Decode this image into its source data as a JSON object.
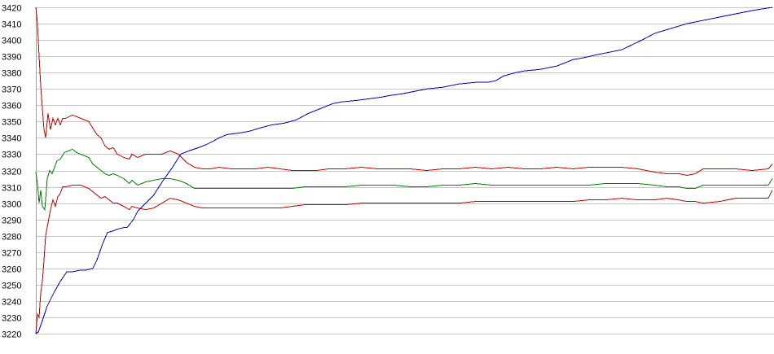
{
  "chart_data": {
    "type": "line",
    "title": "",
    "xlabel": "",
    "ylabel": "",
    "ylim": [
      3220,
      3420
    ],
    "xlim": [
      0,
      905
    ],
    "y_ticks": [
      3220,
      3230,
      3240,
      3250,
      3260,
      3270,
      3280,
      3290,
      3300,
      3310,
      3320,
      3330,
      3340,
      3350,
      3360,
      3370,
      3380,
      3390,
      3400,
      3410,
      3420
    ],
    "y_tick_labels": [
      "3220",
      "3230",
      "3240",
      "3250",
      "3260",
      "3270",
      "3280",
      "3290",
      "3300",
      "3310",
      "3320",
      "3330",
      "3340",
      "3350",
      "3360",
      "3370",
      "3380",
      "3390",
      "3400",
      "3410",
      "3420"
    ],
    "grid": true,
    "legend": "none",
    "series": [
      {
        "color": "#0000c8",
        "x": [
          0,
          3,
          8,
          14,
          22,
          30,
          38,
          46,
          55,
          62,
          70,
          75,
          82,
          88,
          95,
          100,
          108,
          112,
          120,
          125,
          135,
          145,
          150,
          158,
          168,
          178,
          188,
          200,
          210,
          218,
          225,
          235,
          250,
          262,
          275,
          290,
          305,
          320,
          335,
          350,
          365,
          375,
          395,
          410,
          425,
          435,
          450,
          470,
          480,
          500,
          520,
          540,
          555,
          565,
          575,
          590,
          600,
          620,
          640,
          650,
          660,
          672,
          690,
          720,
          745,
          760,
          780,
          800,
          830,
          860,
          880,
          905
        ],
        "y": [
          3220,
          3221,
          3228,
          3237,
          3245,
          3252,
          3258,
          3258,
          3259,
          3259,
          3260,
          3265,
          3275,
          3282,
          3283,
          3284,
          3285,
          3285,
          3290,
          3295,
          3300,
          3305,
          3309,
          3315,
          3322,
          3330,
          3332,
          3334,
          3336,
          3338,
          3340,
          3342,
          3343,
          3344,
          3346,
          3348,
          3349,
          3351,
          3355,
          3358,
          3361,
          3362,
          3363,
          3364,
          3365,
          3366,
          3367,
          3369,
          3370,
          3371,
          3373,
          3374,
          3374,
          3375,
          3378,
          3380,
          3381,
          3382,
          3384,
          3386,
          3388,
          3389,
          3391,
          3394,
          3400,
          3404,
          3407,
          3410,
          3413,
          3416,
          3418,
          3420
        ]
      },
      {
        "color": "#c80000",
        "x": [
          0,
          2,
          4,
          6,
          8,
          10,
          12,
          15,
          18,
          21,
          24,
          27,
          30,
          33,
          37,
          45,
          55,
          65,
          75,
          80,
          85,
          90,
          95,
          100,
          108,
          115,
          118,
          125,
          135,
          145,
          155,
          165,
          175,
          185,
          195,
          205,
          215,
          225,
          240,
          255,
          270,
          285,
          300,
          315,
          330,
          345,
          360,
          380,
          400,
          420,
          440,
          460,
          480,
          500,
          520,
          540,
          560,
          580,
          600,
          620,
          640,
          660,
          680,
          700,
          720,
          740,
          760,
          775,
          790,
          800,
          810,
          820,
          840,
          860,
          880,
          900,
          905
        ],
        "y": [
          3420,
          3410,
          3390,
          3372,
          3358,
          3345,
          3340,
          3355,
          3345,
          3352,
          3348,
          3352,
          3348,
          3352,
          3352,
          3354,
          3352,
          3350,
          3342,
          3340,
          3335,
          3333,
          3334,
          3330,
          3328,
          3327,
          3330,
          3328,
          3330,
          3330,
          3330,
          3332,
          3330,
          3325,
          3322,
          3321,
          3321,
          3322,
          3321,
          3321,
          3321,
          3322,
          3321,
          3320,
          3320,
          3320,
          3321,
          3321,
          3322,
          3321,
          3321,
          3321,
          3320,
          3321,
          3321,
          3322,
          3321,
          3322,
          3321,
          3321,
          3322,
          3321,
          3322,
          3322,
          3322,
          3321,
          3319,
          3318,
          3318,
          3317,
          3318,
          3321,
          3321,
          3321,
          3320,
          3321,
          3324
        ]
      },
      {
        "color": "#008000",
        "x": [
          0,
          2,
          4,
          6,
          8,
          11,
          14,
          17,
          20,
          23,
          26,
          30,
          35,
          40,
          45,
          50,
          55,
          60,
          65,
          70,
          75,
          80,
          85,
          90,
          95,
          100,
          108,
          115,
          118,
          125,
          135,
          145,
          155,
          165,
          175,
          185,
          195,
          205,
          215,
          225,
          240,
          255,
          270,
          285,
          300,
          315,
          330,
          345,
          360,
          380,
          400,
          420,
          440,
          460,
          480,
          500,
          520,
          540,
          560,
          580,
          600,
          620,
          640,
          660,
          680,
          700,
          720,
          740,
          760,
          775,
          790,
          800,
          810,
          820,
          840,
          860,
          880,
          900,
          905
        ],
        "y": [
          3319,
          3312,
          3300,
          3308,
          3298,
          3296,
          3315,
          3320,
          3318,
          3322,
          3326,
          3327,
          3331,
          3332,
          3333,
          3331,
          3330,
          3329,
          3328,
          3324,
          3322,
          3320,
          3318,
          3317,
          3318,
          3317,
          3315,
          3312,
          3314,
          3311,
          3313,
          3314,
          3315,
          3315,
          3314,
          3312,
          3309,
          3309,
          3309,
          3309,
          3309,
          3309,
          3309,
          3309,
          3309,
          3309,
          3310,
          3310,
          3310,
          3310,
          3311,
          3311,
          3311,
          3310,
          3310,
          3311,
          3311,
          3312,
          3311,
          3311,
          3311,
          3311,
          3311,
          3311,
          3311,
          3312,
          3312,
          3312,
          3311,
          3310,
          3310,
          3309,
          3309,
          3311,
          3311,
          3311,
          3311,
          3311,
          3315
        ]
      },
      {
        "color": "#c80000",
        "x": [
          0,
          2,
          4,
          6,
          8,
          10,
          12,
          15,
          18,
          21,
          24,
          27,
          30,
          33,
          37,
          45,
          55,
          65,
          75,
          80,
          85,
          90,
          95,
          100,
          108,
          115,
          118,
          125,
          135,
          145,
          155,
          165,
          175,
          185,
          195,
          205,
          215,
          225,
          240,
          255,
          270,
          285,
          300,
          315,
          330,
          345,
          360,
          380,
          400,
          420,
          440,
          460,
          480,
          500,
          520,
          540,
          560,
          580,
          600,
          620,
          640,
          660,
          680,
          700,
          720,
          740,
          760,
          775,
          790,
          800,
          810,
          820,
          840,
          860,
          880,
          900,
          905
        ],
        "y": [
          3220,
          3232,
          3230,
          3245,
          3252,
          3265,
          3280,
          3288,
          3296,
          3302,
          3298,
          3304,
          3306,
          3310,
          3310,
          3311,
          3311,
          3309,
          3305,
          3303,
          3304,
          3302,
          3300,
          3300,
          3298,
          3296,
          3298,
          3297,
          3296,
          3297,
          3300,
          3303,
          3302,
          3300,
          3298,
          3297,
          3297,
          3297,
          3297,
          3297,
          3297,
          3297,
          3297,
          3298,
          3299,
          3299,
          3299,
          3299,
          3300,
          3300,
          3300,
          3300,
          3300,
          3300,
          3300,
          3301,
          3301,
          3301,
          3301,
          3301,
          3301,
          3301,
          3302,
          3302,
          3303,
          3302,
          3302,
          3303,
          3302,
          3301,
          3301,
          3300,
          3301,
          3303,
          3303,
          3303,
          3308
        ]
      }
    ]
  }
}
